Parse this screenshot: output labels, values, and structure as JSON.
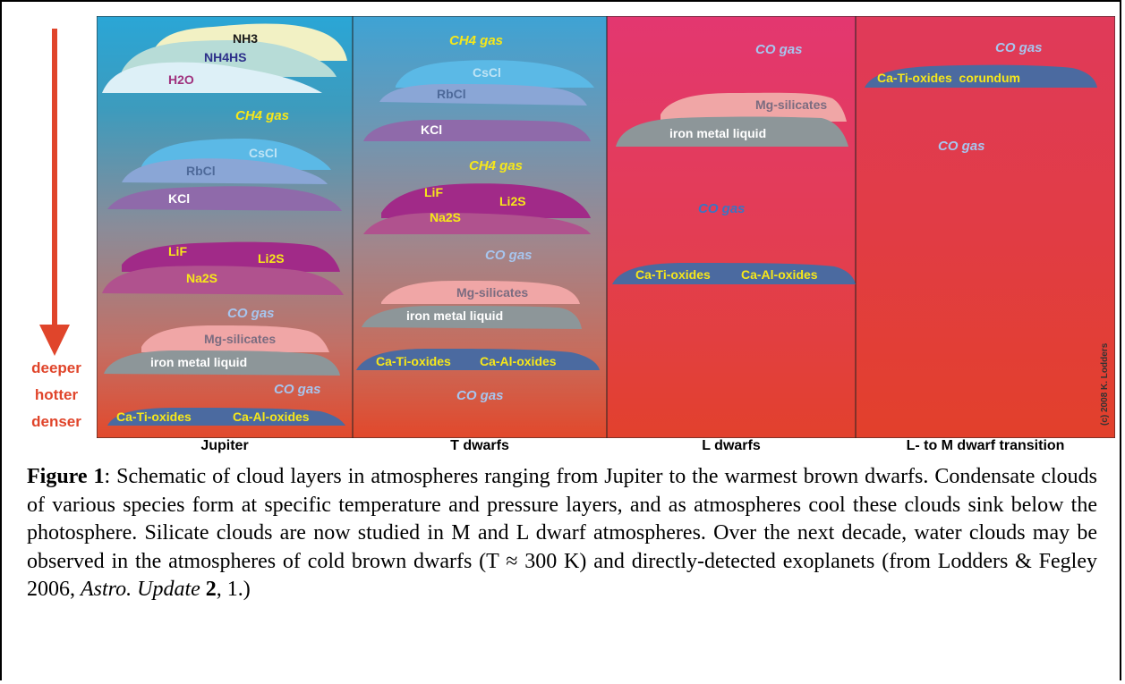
{
  "colors": {
    "arrow": "#e0452b",
    "gas_label_yellow": "#f6e71a",
    "gas_label_lightblue": "#a7c5ee",
    "gas_label_blue": "#3b74c2"
  },
  "side_labels": [
    "deeper",
    "hotter",
    "denser"
  ],
  "panels": [
    {
      "label": "Jupiter"
    },
    {
      "label": "T dwarfs"
    },
    {
      "label": "L dwarfs"
    },
    {
      "label": "L- to M dwarf transition"
    }
  ],
  "jupiter": {
    "nh3": "NH3",
    "nh4hs": "NH4HS",
    "h2o": "H2O",
    "ch4_gas": "CH4 gas",
    "cscl": "CsCl",
    "rbcl": "RbCl",
    "kcl": "KCl",
    "lif": "LiF",
    "li2s": "Li2S",
    "na2s": "Na2S",
    "co_gas_1": "CO gas",
    "mg_silicates": "Mg-silicates",
    "iron": "iron metal liquid",
    "co_gas_2": "CO gas",
    "ca_ti": "Ca-Ti-oxides",
    "ca_al": "Ca-Al-oxides"
  },
  "t_dwarfs": {
    "ch4_gas_1": "CH4 gas",
    "cscl": "CsCl",
    "rbcl": "RbCl",
    "kcl": "KCl",
    "ch4_gas_2": "CH4 gas",
    "lif": "LiF",
    "li2s": "Li2S",
    "na2s": "Na2S",
    "co_gas_1": "CO gas",
    "mg_silicates": "Mg-silicates",
    "iron": "iron metal liquid",
    "ca_ti": "Ca-Ti-oxides",
    "ca_al": "Ca-Al-oxides",
    "co_gas_2": "CO gas"
  },
  "l_dwarfs": {
    "co_gas_1": "CO gas",
    "mg_silicates": "Mg-silicates",
    "iron": "iron metal liquid",
    "co_gas_2": "CO gas",
    "ca_ti": "Ca-Ti-oxides",
    "ca_al": "Ca-Al-oxides"
  },
  "lm_transition": {
    "co_gas_1": "CO gas",
    "ca_ti_corundum": "Ca-Ti-oxides  corundum",
    "co_gas_2": "CO gas",
    "copyright": "(c) 2008 K. Lodders"
  },
  "caption": {
    "fig_label": "Figure 1",
    "text_1": ": Schematic of cloud layers in atmospheres ranging from Jupiter to the warmest brown dwarfs. Condensate clouds of various species form at specific temperature and pressure layers, and as atmospheres cool these clouds sink below the photosphere.  Silicate clouds are now studied in M and L dwarf atmospheres.  Over the next decade, water clouds may be observed in the atmospheres of cold brown dwarfs (T ≈ 300 K) and directly-detected exoplanets (from Lodders & Fegley 2006, ",
    "journal": "Astro. Update",
    "volume": "2",
    "text_2": ", 1.)"
  }
}
